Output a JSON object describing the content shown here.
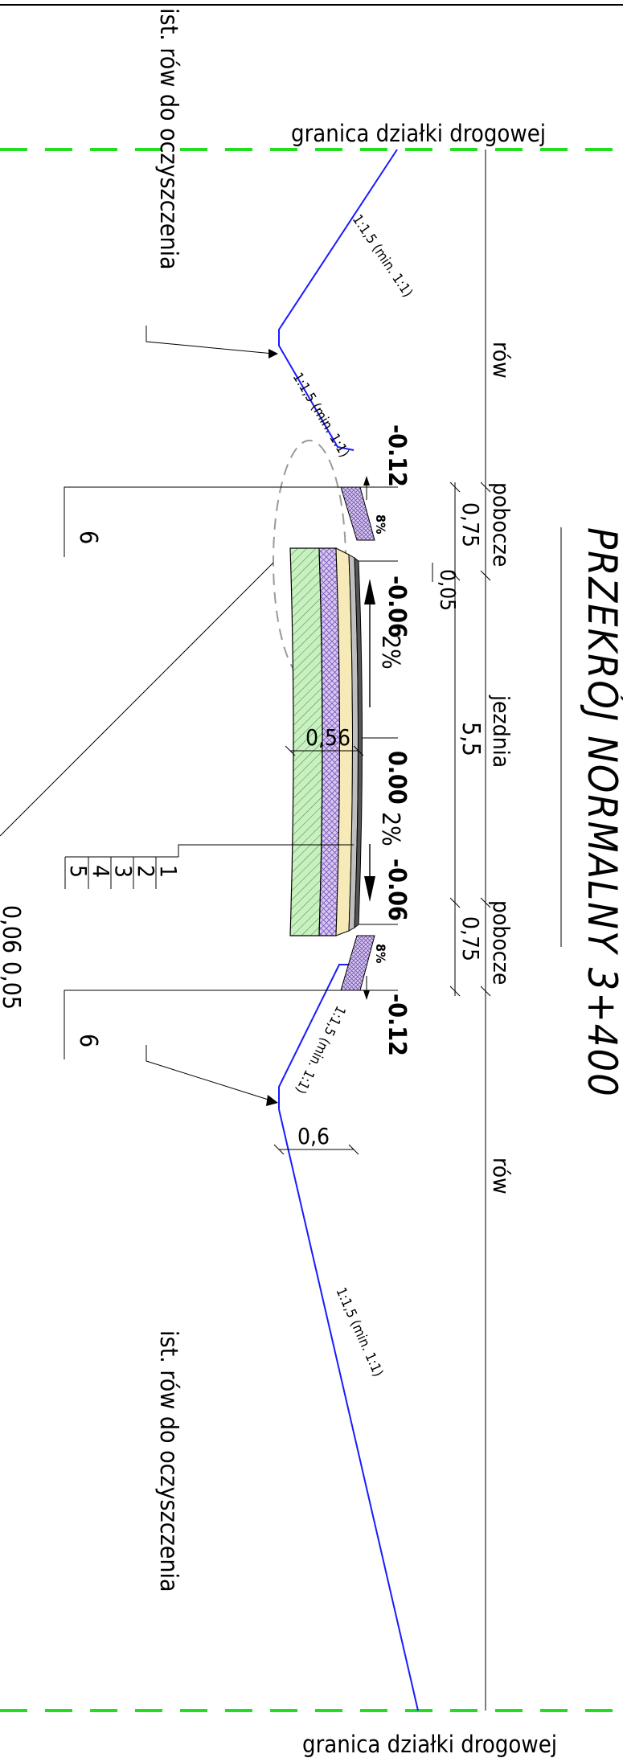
{
  "title": "PRZEKRÓJ NORMALNY 3+400",
  "boundary_labels": [
    "granica działki drogowej",
    "granica działki drogowej"
  ],
  "ditch_notes": [
    "ist. rów do oczyszczenia",
    "ist. rów do oczyszczenia"
  ],
  "zones": {
    "ditch_left": "rów",
    "shoulder_left": "pobocze",
    "carriageway": "jezdnia",
    "shoulder_right": "pobocze",
    "ditch_right": "rów"
  },
  "dimensions": {
    "shoulder_left": "0,75",
    "offset": "0,05",
    "carriageway": "5,5",
    "shoulder_right": "0,75",
    "ditch_bottom": "0,6",
    "structure_depth": "0,56"
  },
  "slopes": {
    "ditch_outer_left": "1:1,5 (min. 1:1)",
    "ditch_inner_left": "1:1,5 (min. 1:1)",
    "ditch_inner_right": "1:1,5 (min. 1:1)",
    "ditch_outer_right": "1:1,5 (min. 1:1)",
    "shoulder_left": "8%",
    "shoulder_right": "8%",
    "lane_left": "2%",
    "lane_right": "2%"
  },
  "levels": {
    "shoulder_edge_left": "-0.12",
    "road_edge_left": "-0.06",
    "axis": "0.00",
    "road_edge_right": "-0.06",
    "shoulder_edge_right": "-0.12"
  },
  "layer_tags": {
    "shoulder_left": "6",
    "structure": [
      "1",
      "2",
      "3",
      "4",
      "5"
    ],
    "shoulder_right": "6"
  },
  "cut_off_text": [
    "0,06",
    "0,05"
  ],
  "colors": {
    "boundary": "#22dd22",
    "terrain": "#1a1aff",
    "subbase": "#c8f0c0",
    "base": "#d8c8f0",
    "binder": "#f6eab8",
    "wearing": "#bfbfbf",
    "detail_ring": "#9a9a9a"
  }
}
